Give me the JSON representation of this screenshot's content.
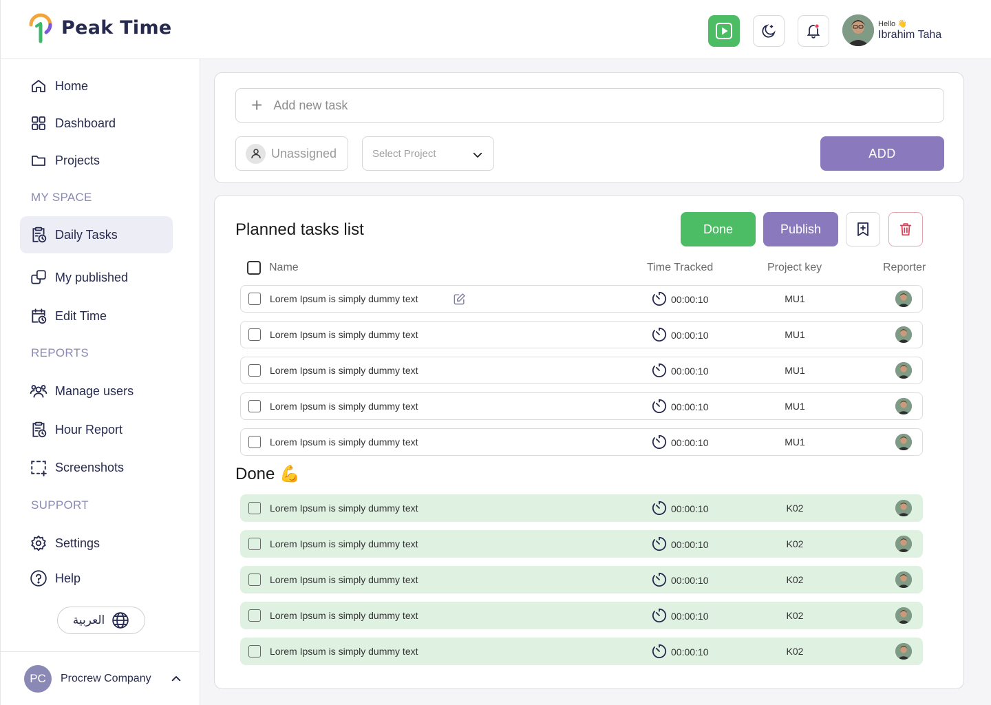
{
  "app": {
    "name": "Peak Time"
  },
  "user": {
    "greeting": "Hello 👋",
    "name": "Ibrahim Taha"
  },
  "sidebar": {
    "items": [
      {
        "label": "Home"
      },
      {
        "label": "Dashboard"
      },
      {
        "label": "Projects"
      },
      {
        "label": "Daily Tasks"
      },
      {
        "label": "My published"
      },
      {
        "label": "Edit Time"
      },
      {
        "label": "Manage users"
      },
      {
        "label": "Hour Report"
      },
      {
        "label": "Screenshots"
      },
      {
        "label": "Settings"
      },
      {
        "label": "Help"
      }
    ],
    "sections": {
      "my_space": "MY SPACE",
      "reports": "REPORTS",
      "support": "SUPPORT"
    },
    "language_label": "العربية",
    "company": {
      "initials": "PC",
      "name": "Procrew Company"
    }
  },
  "add_task": {
    "placeholder": "Add new task",
    "assignee_label": "Unassigned",
    "project_placeholder": "Select Project",
    "add_label": "ADD"
  },
  "planned": {
    "title": "Planned tasks list",
    "done_label": "Done",
    "publish_label": "Publish",
    "columns": {
      "name": "Name",
      "time": "Time Tracked",
      "key": "Project key",
      "reporter": "Reporter"
    },
    "rows": [
      {
        "name": "Lorem Ipsum is simply dummy text",
        "time": "00:00:10",
        "key": "MU1"
      },
      {
        "name": "Lorem Ipsum is simply dummy text",
        "time": "00:00:10",
        "key": "MU1"
      },
      {
        "name": "Lorem Ipsum is simply dummy text",
        "time": "00:00:10",
        "key": "MU1"
      },
      {
        "name": "Lorem Ipsum is simply dummy text",
        "time": "00:00:10",
        "key": "MU1"
      },
      {
        "name": "Lorem Ipsum is simply dummy text",
        "time": "00:00:10",
        "key": "MU1"
      }
    ]
  },
  "done": {
    "title": "Done 💪",
    "rows": [
      {
        "name": "Lorem Ipsum is simply dummy text",
        "time": "00:00:10",
        "key": "K02"
      },
      {
        "name": "Lorem Ipsum is simply dummy text",
        "time": "00:00:10",
        "key": "K02"
      },
      {
        "name": "Lorem Ipsum is simply dummy text",
        "time": "00:00:10",
        "key": "K02"
      },
      {
        "name": "Lorem Ipsum is simply dummy text",
        "time": "00:00:10",
        "key": "K02"
      },
      {
        "name": "Lorem Ipsum is simply dummy text",
        "time": "00:00:10",
        "key": "K02"
      }
    ]
  },
  "colors": {
    "brand": "#262a4e",
    "accent_purple": "#8a79bc",
    "accent_green": "#4cbd65",
    "done_row_bg": "#dff1e1",
    "danger": "#e0405a"
  }
}
